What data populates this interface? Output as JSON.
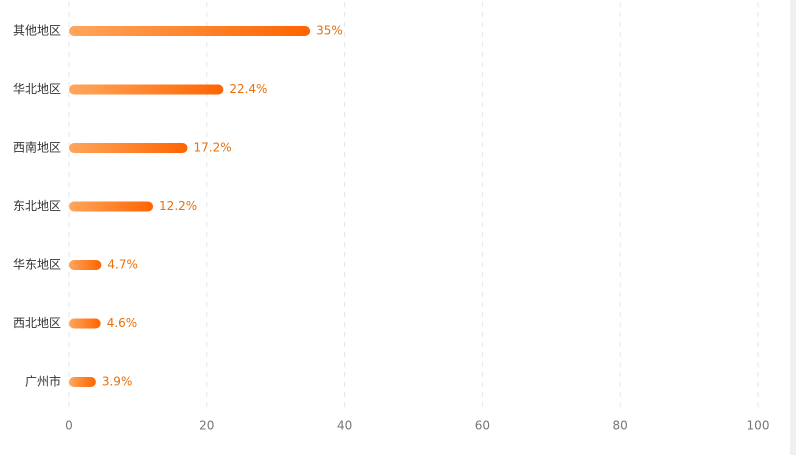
{
  "chart_data": {
    "type": "bar",
    "orientation": "horizontal",
    "categories": [
      "其他地区",
      "华北地区",
      "西南地区",
      "东北地区",
      "华东地区",
      "西北地区",
      "广州市"
    ],
    "values": [
      35,
      22.4,
      17.2,
      12.2,
      4.7,
      4.6,
      3.9
    ],
    "value_labels": [
      "35%",
      "22.4%",
      "17.2%",
      "12.2%",
      "4.7%",
      "4.6%",
      "3.9%"
    ],
    "gradient": [
      "#ffa65c",
      "#ff6400"
    ],
    "label_color": "#e8700d",
    "xlim": [
      0,
      100
    ],
    "xticks": [
      0,
      20,
      40,
      60,
      80,
      100
    ],
    "grid": true
  }
}
